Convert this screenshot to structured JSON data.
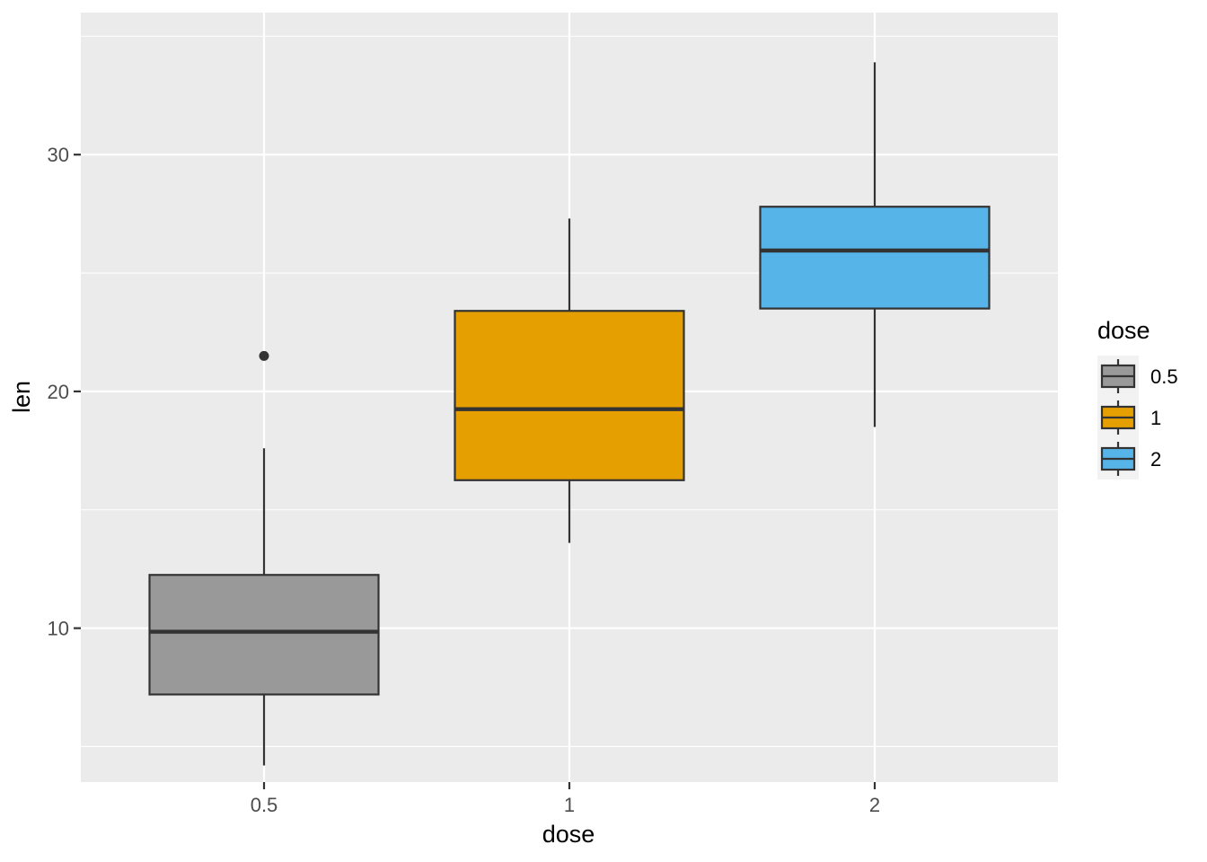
{
  "chart_data": {
    "type": "boxplot",
    "xlabel": "dose",
    "ylabel": "len",
    "categories": [
      "0.5",
      "1",
      "2"
    ],
    "ylim": [
      3.5,
      36.0
    ],
    "yticks": [
      10,
      20,
      30
    ],
    "y_tick_labels": [
      "10",
      "20",
      "30"
    ],
    "grid": true,
    "legend": {
      "title": "dose",
      "position": "right",
      "entries": [
        "0.5",
        "1",
        "2"
      ]
    },
    "boxes": [
      {
        "name": "0.5",
        "color": "#999999",
        "whisker_low": 4.2,
        "q1": 7.2,
        "median": 9.85,
        "q3": 12.25,
        "whisker_high": 17.6,
        "outliers": [
          21.5
        ]
      },
      {
        "name": "1",
        "color": "#E69F00",
        "whisker_low": 13.6,
        "q1": 16.25,
        "median": 19.25,
        "q3": 23.4,
        "whisker_high": 27.3,
        "outliers": []
      },
      {
        "name": "2",
        "color": "#56B4E9",
        "whisker_low": 18.5,
        "q1": 23.5,
        "median": 25.95,
        "q3": 27.8,
        "whisker_high": 33.9,
        "outliers": []
      }
    ]
  }
}
